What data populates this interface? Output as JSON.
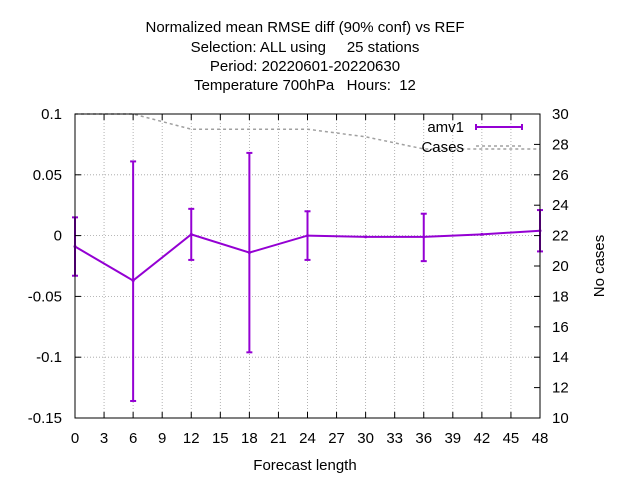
{
  "chart_data": {
    "type": "line",
    "title_lines": [
      "Normalized mean RMSE diff (90% conf) vs REF",
      "Selection: ALL using     25 stations",
      "Period: 20220601-20220630",
      "Temperature 700hPa   Hours:  12"
    ],
    "xlabel": "Forecast length",
    "ylabel_right": "No cases",
    "xlim": [
      0,
      48
    ],
    "ylim": [
      -0.15,
      0.1
    ],
    "y2lim": [
      10,
      30
    ],
    "x_ticks": [
      0,
      3,
      6,
      9,
      12,
      15,
      18,
      21,
      24,
      27,
      30,
      33,
      36,
      39,
      42,
      45,
      48
    ],
    "y_ticks": [
      -0.15,
      -0.1,
      -0.05,
      0,
      0.05,
      0.1
    ],
    "y_tick_labels": [
      "-0.15",
      "-0.1",
      "-0.05",
      "0",
      "0.05",
      "0.1"
    ],
    "y2_ticks": [
      10,
      12,
      14,
      16,
      18,
      20,
      22,
      24,
      26,
      28,
      30
    ],
    "grid": true,
    "legend_position": "top-right",
    "series": [
      {
        "name": "amv1",
        "color": "#9400d3",
        "x": [
          0,
          6,
          12,
          18,
          24,
          30,
          36,
          42,
          48
        ],
        "y": [
          -0.009,
          -0.037,
          0.001,
          -0.014,
          0.0,
          -0.001,
          -0.001,
          0.001,
          0.004
        ],
        "err_x": [
          0,
          6,
          12,
          18,
          24,
          36,
          48
        ],
        "err_low": [
          -0.033,
          -0.136,
          -0.02,
          -0.096,
          -0.02,
          -0.021,
          -0.013
        ],
        "err_high": [
          0.015,
          0.061,
          0.022,
          0.068,
          0.02,
          0.018,
          0.021
        ]
      },
      {
        "name": "Cases",
        "color": "#a0a0a0",
        "axis": "right",
        "x": [
          0,
          6,
          12,
          18,
          24,
          30,
          36,
          42,
          48
        ],
        "y": [
          30,
          30,
          29,
          29,
          29,
          28.5,
          27.7,
          27.7,
          27.7
        ]
      }
    ]
  }
}
